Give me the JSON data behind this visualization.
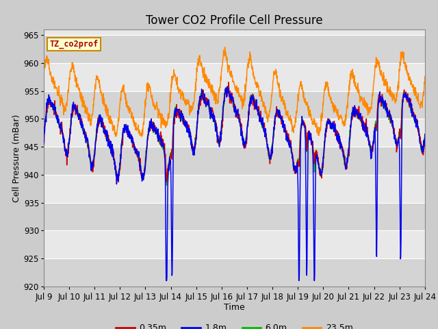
{
  "title": "Tower CO2 Profile Cell Pressure",
  "xlabel": "Time",
  "ylabel": "Cell Pressure (mBar)",
  "ylim": [
    920,
    966
  ],
  "yticks": [
    920,
    925,
    930,
    935,
    940,
    945,
    950,
    955,
    960,
    965
  ],
  "x_tick_labels": [
    "Jul 9",
    "Jul 10",
    "Jul 11",
    "Jul 12",
    "Jul 13",
    "Jul 14",
    "Jul 15",
    "Jul 16",
    "Jul 17",
    "Jul 18",
    "Jul 19",
    "Jul 20",
    "Jul 21",
    "Jul 22",
    "Jul 23",
    "Jul 24"
  ],
  "legend_labels": [
    "0.35m",
    "1.8m",
    "6.0m",
    "23.5m"
  ],
  "line_colors": [
    "#cc0000",
    "#0000ee",
    "#00bb00",
    "#ff8800"
  ],
  "watermark_text": "TZ_co2prof",
  "watermark_color": "#aa0000",
  "watermark_bg": "#ffffcc",
  "watermark_border": "#cc8800",
  "fig_bg_color": "#cccccc",
  "plot_bg_color": "#e8e8e8",
  "grid_color": "#ffffff",
  "title_fontsize": 12,
  "axis_fontsize": 9,
  "tick_fontsize": 8.5,
  "n_points": 1440,
  "seed": 17
}
